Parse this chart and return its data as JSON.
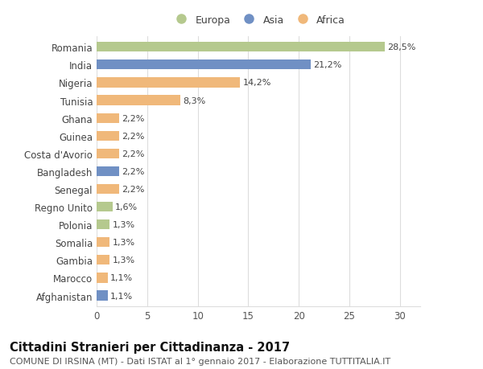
{
  "categories": [
    "Romania",
    "India",
    "Nigeria",
    "Tunisia",
    "Ghana",
    "Guinea",
    "Costa d'Avorio",
    "Bangladesh",
    "Senegal",
    "Regno Unito",
    "Polonia",
    "Somalia",
    "Gambia",
    "Marocco",
    "Afghanistan"
  ],
  "values": [
    28.5,
    21.2,
    14.2,
    8.3,
    2.2,
    2.2,
    2.2,
    2.2,
    2.2,
    1.6,
    1.3,
    1.3,
    1.3,
    1.1,
    1.1
  ],
  "continents": [
    "Europa",
    "Asia",
    "Africa",
    "Africa",
    "Africa",
    "Africa",
    "Africa",
    "Asia",
    "Africa",
    "Europa",
    "Europa",
    "Africa",
    "Africa",
    "Africa",
    "Asia"
  ],
  "colors": {
    "Europa": "#b5c98e",
    "Asia": "#7090c4",
    "Africa": "#f0b87a"
  },
  "legend_labels": [
    "Europa",
    "Asia",
    "Africa"
  ],
  "title": "Cittadini Stranieri per Cittadinanza - 2017",
  "subtitle": "COMUNE DI IRSINA (MT) - Dati ISTAT al 1° gennaio 2017 - Elaborazione TUTTITALIA.IT",
  "xlim": [
    0,
    32
  ],
  "xticks": [
    0,
    5,
    10,
    15,
    20,
    25,
    30
  ],
  "background_color": "#ffffff",
  "grid_color": "#dddddd",
  "bar_label_fontsize": 8,
  "tick_label_fontsize": 8.5,
  "title_fontsize": 10.5,
  "subtitle_fontsize": 8,
  "bar_height": 0.55
}
